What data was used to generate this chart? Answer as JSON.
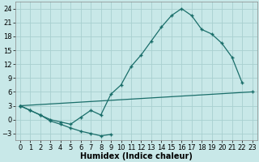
{
  "xlabel": "Humidex (Indice chaleur)",
  "background_color": "#c8e8e8",
  "grid_color": "#a8d0d0",
  "line_color": "#1a6e6a",
  "xlim": [
    -0.5,
    23.5
  ],
  "ylim": [
    -4.5,
    25.5
  ],
  "yticks": [
    -3,
    0,
    3,
    6,
    9,
    12,
    15,
    18,
    21,
    24
  ],
  "xticks": [
    0,
    1,
    2,
    3,
    4,
    5,
    6,
    7,
    8,
    9,
    10,
    11,
    12,
    13,
    14,
    15,
    16,
    17,
    18,
    19,
    20,
    21,
    22,
    23
  ],
  "line_upper_x": [
    0,
    1,
    2,
    3,
    4,
    5,
    6,
    7,
    8,
    9,
    10,
    11,
    12,
    13,
    14,
    15,
    16,
    17,
    18,
    19,
    20,
    21,
    22
  ],
  "line_upper_y": [
    3.0,
    2.0,
    1.0,
    0.0,
    -0.5,
    -1.0,
    0.5,
    2.0,
    1.0,
    5.5,
    7.5,
    11.5,
    14.0,
    17.0,
    20.0,
    22.5,
    24.0,
    22.5,
    19.5,
    18.5,
    16.5,
    13.5,
    8.0
  ],
  "line_mid_x": [
    0,
    1,
    2,
    3,
    4,
    5,
    6,
    7,
    8,
    9,
    10,
    11,
    12,
    13,
    14,
    15,
    16,
    17,
    18,
    19,
    20,
    21,
    22,
    23
  ],
  "line_mid_y": [
    3.0,
    2.2,
    2.5,
    2.7,
    3.0,
    3.2,
    3.5,
    4.0,
    4.5,
    5.0,
    5.2,
    5.5,
    5.8,
    6.0,
    6.2,
    6.5,
    6.7,
    7.0,
    7.2,
    7.5,
    7.7,
    8.0,
    8.2,
    8.5
  ],
  "line_low_x": [
    0,
    1,
    2,
    3,
    4,
    5,
    6,
    7,
    8,
    9
  ],
  "line_low_y": [
    3.0,
    2.0,
    1.0,
    -0.3,
    -1.0,
    -1.8,
    -2.5,
    -3.0,
    -3.5,
    -3.2
  ],
  "font_size_label": 7,
  "font_size_tick": 6,
  "marker_size": 3,
  "line_width": 0.9
}
